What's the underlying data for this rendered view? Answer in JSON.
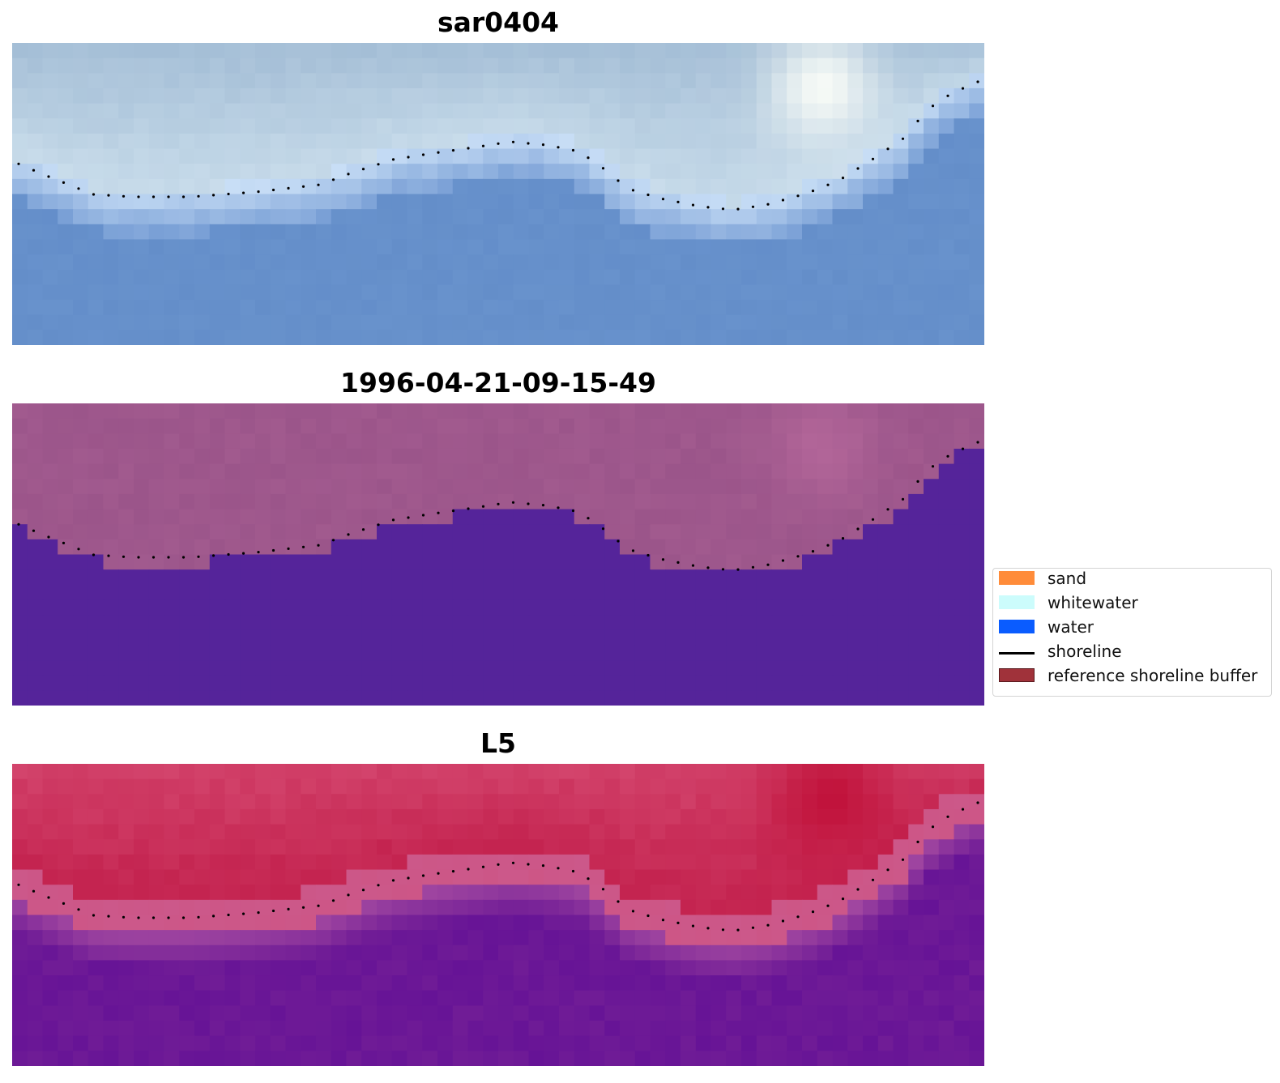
{
  "panels": [
    {
      "title": "sar0404",
      "style": "sar"
    },
    {
      "title": "1996-04-21-09-15-49",
      "style": "classified"
    },
    {
      "title": "L5",
      "style": "l5"
    }
  ],
  "legend": {
    "items": [
      {
        "label": "sand",
        "color": "#ff8c3a",
        "kind": "patch"
      },
      {
        "label": "whitewater",
        "color": "#ccfcfc",
        "kind": "patch"
      },
      {
        "label": "water",
        "color": "#0a5cff",
        "kind": "patch"
      },
      {
        "label": "shoreline",
        "color": "#000000",
        "kind": "line"
      },
      {
        "label": "reference shoreline buffer",
        "color": "#a0323a",
        "kind": "patch-outline"
      }
    ]
  },
  "colors": {
    "water_class": "#55249a",
    "land_overlay": "#a15a8e",
    "shoreline_dots": "#000000"
  }
}
